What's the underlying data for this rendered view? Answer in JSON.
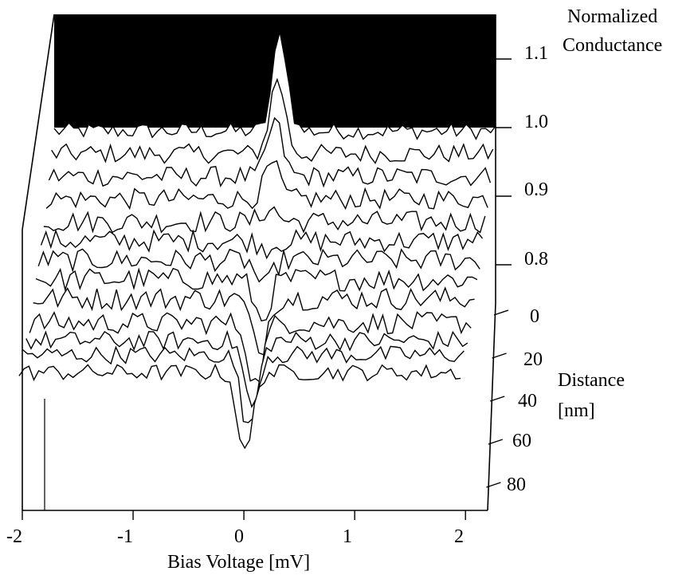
{
  "chart_data": {
    "type": "line",
    "subtype": "3d-waterfall",
    "xlabel": "Bias Voltage [mV]",
    "xticks": [
      "-2",
      "-1",
      "0",
      "1",
      "2"
    ],
    "xlim": [
      -2,
      2.2
    ],
    "zlabel_line1": "Normalized",
    "zlabel_line2": "Conductance",
    "zticks": [
      "1.1",
      "1.0",
      "0.9",
      "0.8"
    ],
    "zlim": [
      0.75,
      1.15
    ],
    "ylabel_line1": "Distance",
    "ylabel_line2": "[nm]",
    "yticks": [
      "0",
      "20",
      "40",
      "60",
      "80"
    ],
    "ylim": [
      0,
      90
    ],
    "colors": {
      "line": "#000000",
      "back_fill": "#000000",
      "front_fill": "#ffffff"
    },
    "series": [
      {
        "distance": 0,
        "baseline": 0.995,
        "peak": 0.14,
        "noise": 0.012
      },
      {
        "distance": 6,
        "baseline": 0.985,
        "peak": 0.11,
        "noise": 0.014
      },
      {
        "distance": 12,
        "baseline": 0.975,
        "peak": 0.08,
        "noise": 0.015
      },
      {
        "distance": 18,
        "baseline": 0.965,
        "peak": 0.05,
        "noise": 0.015
      },
      {
        "distance": 24,
        "baseline": 0.955,
        "peak": 0.02,
        "noise": 0.016
      },
      {
        "distance": 30,
        "baseline": 0.95,
        "peak": -0.01,
        "noise": 0.016
      },
      {
        "distance": 36,
        "baseline": 0.945,
        "peak": -0.04,
        "noise": 0.016
      },
      {
        "distance": 42,
        "baseline": 0.94,
        "peak": -0.06,
        "noise": 0.017
      },
      {
        "distance": 48,
        "baseline": 0.935,
        "peak": -0.08,
        "noise": 0.017
      },
      {
        "distance": 56,
        "baseline": 0.93,
        "peak": -0.09,
        "noise": 0.016
      },
      {
        "distance": 64,
        "baseline": 0.935,
        "peak": -0.1,
        "noise": 0.014
      },
      {
        "distance": 72,
        "baseline": 0.945,
        "peak": -0.11,
        "noise": 0.013
      },
      {
        "distance": 80,
        "baseline": 0.95,
        "peak": -0.12,
        "noise": 0.012
      }
    ]
  }
}
